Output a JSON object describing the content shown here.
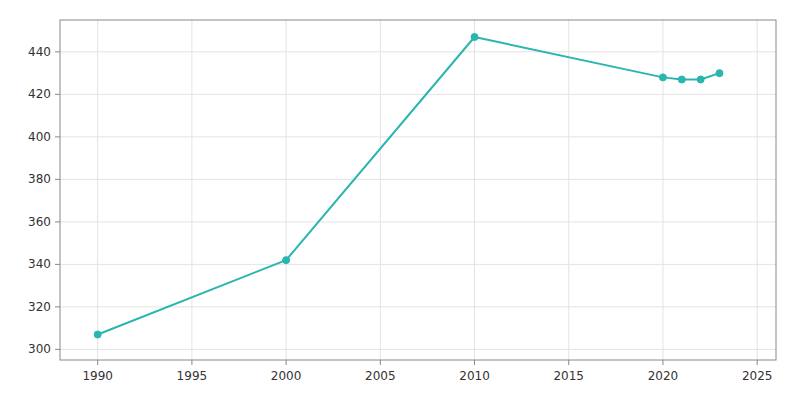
{
  "chart_data": {
    "type": "line",
    "x": [
      1990,
      2000,
      2010,
      2020,
      2021,
      2022,
      2023
    ],
    "values": [
      307,
      342,
      447,
      428,
      427,
      427,
      430
    ],
    "color": "#2ab5b0",
    "marker": "circle",
    "xlim": [
      1988,
      2026
    ],
    "ylim": [
      295,
      455
    ],
    "xticks": [
      1990,
      1995,
      2000,
      2005,
      2010,
      2015,
      2020,
      2025
    ],
    "yticks": [
      300,
      320,
      340,
      360,
      380,
      400,
      420,
      440
    ],
    "grid": true
  }
}
